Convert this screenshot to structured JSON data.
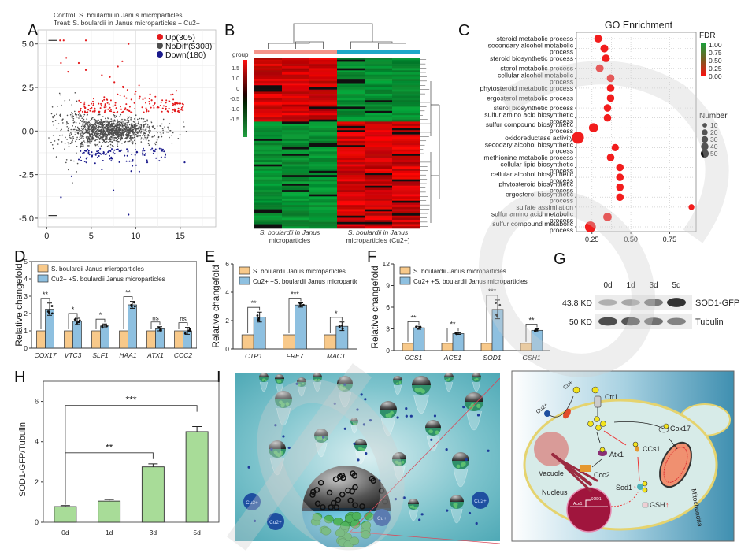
{
  "panels": {
    "A": "A",
    "B": "B",
    "C": "C",
    "D": "D",
    "E": "E",
    "F": "F",
    "G": "G",
    "H": "H",
    "I": "I"
  },
  "chart_data": [
    {
      "id": "A",
      "type": "scatter",
      "title_lines": [
        "Control: S. boulardii in Janus microparticles",
        "Treat: S. boulardii in Janus microparticles + Cu2+"
      ],
      "xlabel": "",
      "ylabel": "",
      "xlim": [
        -1,
        19
      ],
      "ylim": [
        -5.5,
        5.8
      ],
      "xticks": [
        0,
        5,
        10,
        15
      ],
      "yticks": [
        5.0,
        2.5,
        0.0,
        -2.5,
        -5.0
      ],
      "ytick_labels": [
        "5.0",
        "2.5",
        "0.0",
        "-2.5",
        "-5.0"
      ],
      "xtick_labels": [
        "0",
        "5",
        "10",
        "15"
      ],
      "grid": true,
      "legend_position": "top-right",
      "series": [
        {
          "name": "Up(305)",
          "color": "#e41a1c",
          "count": 305
        },
        {
          "name": "NoDiff(5308)",
          "color": "#4d4d4d",
          "count": 5308
        },
        {
          "name": "Down(180)",
          "color": "#1a1a8c",
          "count": 180
        }
      ],
      "highlight_points": [
        {
          "x": 1.5,
          "y": 5.2,
          "series": "Up(305)"
        },
        {
          "x": 1.9,
          "y": 5.2,
          "series": "Up(305)"
        },
        {
          "x": 4.4,
          "y": 5.2,
          "series": "Up(305)"
        },
        {
          "x": 9.2,
          "y": 5.0,
          "series": "Up(305)"
        },
        {
          "x": 2.2,
          "y": 4.2,
          "series": "Up(305)"
        },
        {
          "x": 1.6,
          "y": 3.9,
          "series": "Up(305)"
        },
        {
          "x": 3.6,
          "y": 3.9,
          "series": "Up(305)"
        },
        {
          "x": 8.5,
          "y": 4.0,
          "series": "Up(305)"
        },
        {
          "x": 8.0,
          "y": 3.7,
          "series": "Up(305)"
        },
        {
          "x": 2.4,
          "y": 3.4,
          "series": "Up(305)"
        },
        {
          "x": 4.4,
          "y": 3.5,
          "series": "Up(305)"
        },
        {
          "x": 6.2,
          "y": 3.2,
          "series": "Up(305)"
        },
        {
          "x": 7.1,
          "y": 3.1,
          "series": "Up(305)"
        },
        {
          "x": 7.6,
          "y": 2.8,
          "series": "Up(305)"
        },
        {
          "x": 8.6,
          "y": 2.5,
          "series": "Up(305)"
        },
        {
          "x": 15.3,
          "y": 1.4,
          "series": "Up(305)"
        },
        {
          "x": 14.6,
          "y": 1.6,
          "series": "Up(305)"
        },
        {
          "x": 1.6,
          "y": -3.8,
          "series": "Down(180)"
        },
        {
          "x": 7.5,
          "y": -3.4,
          "series": "Down(180)"
        },
        {
          "x": 9.2,
          "y": -4.8,
          "series": "Down(180)"
        },
        {
          "x": 2.8,
          "y": -2.6,
          "series": "Down(180)"
        },
        {
          "x": 6.2,
          "y": -2.2,
          "series": "Down(180)"
        },
        {
          "x": 9.5,
          "y": -2.3,
          "series": "Down(180)"
        },
        {
          "x": 15.5,
          "y": -1.8,
          "series": "Down(180)"
        },
        {
          "x": 11.3,
          "y": -1.8,
          "series": "Down(180)"
        },
        {
          "x": 13.3,
          "y": -1.5,
          "series": "Down(180)"
        }
      ]
    },
    {
      "id": "B",
      "type": "heatmap",
      "group_label": "group",
      "colorbar_ticks": [
        "1.5",
        "1.0",
        "0",
        "-0.5",
        "-1.0",
        "-1.5"
      ],
      "groups": [
        {
          "label_line1": "S. boulardii in Janus",
          "label_line2": "microparticles",
          "color": "#f4948a"
        },
        {
          "label_line1": "S. boulardii in Janus",
          "label_line2": "microparticles (Cu2+)",
          "color": "#1ea8c8"
        }
      ],
      "columns": 6,
      "pattern": "top cluster: control up (red), Cu2+ down (green); bottom cluster: control down (green), Cu2+ up (red)"
    },
    {
      "id": "C",
      "type": "scatter",
      "title": "GO Enrichment",
      "xlim": [
        0.15,
        0.92
      ],
      "xticks": [
        0.25,
        0.5,
        0.75
      ],
      "xtick_labels": [
        "0.25",
        "0.50",
        "0.75"
      ],
      "grid": true,
      "legend_position": "right",
      "color_legend": {
        "title": "FDR",
        "ticks": [
          "1.00",
          "0.75",
          "0.50",
          "0.25",
          "0.00"
        ]
      },
      "size_legend": {
        "title": "Number",
        "values": [
          10,
          20,
          30,
          40,
          50
        ]
      },
      "categories": [
        "steroid metabolic process",
        "secondary alcohol metabolic process",
        "steroid biosynthetic process",
        "sterol metabolic process",
        "cellular alcohol metabolic process",
        "phytosteroid metabolic process",
        "ergosterol metabolic process",
        "sterol biosynthetic process",
        "sulfur amino acid biosynthetic process",
        "sulfur compound biosynthetic process",
        "oxidoreductase activity",
        "secodary alcohol biosynthetic process",
        "methionine metabolic process",
        "cellular lipid biosynthetic process",
        "cellular alcohol biosynthetic process",
        "phytosteroid biosynthetic process",
        "ergosterol biosynthetic process",
        "sulfate assimilation",
        "sulfur amino acid metabolic process",
        "sulfur compound metabolic process"
      ],
      "x": [
        0.29,
        0.33,
        0.34,
        0.3,
        0.37,
        0.37,
        0.37,
        0.35,
        0.35,
        0.26,
        0.16,
        0.4,
        0.37,
        0.43,
        0.43,
        0.43,
        0.43,
        0.89,
        0.35,
        0.24
      ],
      "number": [
        18,
        18,
        18,
        18,
        16,
        16,
        16,
        16,
        16,
        26,
        50,
        14,
        16,
        16,
        16,
        16,
        16,
        8,
        22,
        40
      ],
      "fdr": [
        0,
        0,
        0,
        0,
        0,
        0,
        0,
        0,
        0,
        0,
        0,
        0,
        0,
        0,
        0,
        0,
        0,
        0,
        0,
        0
      ]
    },
    {
      "id": "D",
      "type": "bar",
      "ylabel": "Relative changefold",
      "ylim": [
        0,
        5
      ],
      "yticks": [
        0,
        1,
        2,
        3,
        4,
        5
      ],
      "categories": [
        "COX17",
        "VTC3",
        "SLF1",
        "HAA1",
        "ATX1",
        "CCC2"
      ],
      "series": [
        {
          "name": "S. boulardii Janus microparticles",
          "color": "#f8c98a",
          "values": [
            1,
            1,
            1,
            1,
            1,
            1
          ]
        },
        {
          "name": "Cu2+ +S. boulardii Janus microparticles",
          "color": "#8ec0e0",
          "values": [
            2.25,
            1.55,
            1.28,
            2.5,
            1.12,
            1.0
          ],
          "errors": [
            0.35,
            0.18,
            0.12,
            0.2,
            0.12,
            0.2
          ]
        }
      ],
      "significance": [
        "**",
        "*",
        "*",
        "**",
        "ns",
        "ns"
      ]
    },
    {
      "id": "E",
      "type": "bar",
      "ylabel": "Relative changefold",
      "ylim": [
        0,
        6
      ],
      "yticks": [
        0,
        2,
        4,
        6
      ],
      "categories": [
        "CTR1",
        "FRE7",
        "MAC1"
      ],
      "series": [
        {
          "name": "S. boulardii Janus microparticles",
          "color": "#f8c98a",
          "values": [
            1,
            1,
            1
          ]
        },
        {
          "name": "Cu2+ +S. boulardii Janus microparticles",
          "color": "#8ec0e0",
          "values": [
            2.25,
            3.1,
            1.6
          ],
          "errors": [
            0.35,
            0.15,
            0.3
          ]
        }
      ],
      "significance": [
        "**",
        "***",
        "*"
      ]
    },
    {
      "id": "F",
      "type": "bar",
      "ylabel": "Relative changefold",
      "ylim": [
        0,
        12
      ],
      "yticks": [
        0,
        3,
        6,
        9,
        12
      ],
      "categories": [
        "CCS1",
        "ACE1",
        "SOD1",
        "GSH1"
      ],
      "series": [
        {
          "name": "S. boulardii Janus microparticles",
          "color": "#f8c98a",
          "values": [
            1,
            1,
            1,
            1
          ]
        },
        {
          "name": "Cu2+ +S. boulardii Janus microparticles",
          "color": "#8ec0e0",
          "values": [
            3.15,
            2.35,
            5.7,
            2.8
          ],
          "errors": [
            0.2,
            0.12,
            1.3,
            0.2
          ]
        }
      ],
      "significance": [
        "**",
        "**",
        "***",
        "**"
      ]
    },
    {
      "id": "H",
      "type": "bar",
      "ylabel": "SOD1-GFP/Tubulin",
      "ylim": [
        0,
        7
      ],
      "yticks": [
        0,
        2,
        4,
        6
      ],
      "categories": [
        "0d",
        "1d",
        "3d",
        "5d"
      ],
      "values": [
        0.78,
        1.05,
        2.75,
        4.5
      ],
      "errors": [
        0.05,
        0.08,
        0.15,
        0.25
      ],
      "color": "#a8dc98",
      "comparisons": [
        {
          "from": "0d",
          "to": "3d",
          "label": "**"
        },
        {
          "from": "0d",
          "to": "5d",
          "label": "***"
        }
      ]
    }
  ],
  "western_blot": {
    "lanes": [
      "0d",
      "1d",
      "3d",
      "5d"
    ],
    "rows": [
      {
        "mw": "43.8 KD",
        "label": "SOD1-GFP",
        "intensity": [
          0.25,
          0.3,
          0.55,
          0.95
        ]
      },
      {
        "mw": "50 KD",
        "label": "Tubulin",
        "intensity": [
          0.8,
          0.75,
          0.6,
          0.5
        ]
      }
    ]
  },
  "illustration": {
    "ions": [
      "Cu2+",
      "Cu2+",
      "Cu+",
      "Cu2+"
    ],
    "cell_labels": {
      "cu2": "Cu2+",
      "cu1": "Cu+",
      "ctr1": "Ctr1",
      "cox17": "Cox17",
      "atx1": "Atx1",
      "ccs1": "CCs1",
      "ccc2": "Ccc2",
      "sod1": "Sod1",
      "vacuole": "Vacuole",
      "nucleus": "Nucleus",
      "mitochondria": "Mitochondria",
      "gsh": "GSH",
      "ace1": "Ace1",
      "sod1_gene": "SOD1"
    }
  }
}
